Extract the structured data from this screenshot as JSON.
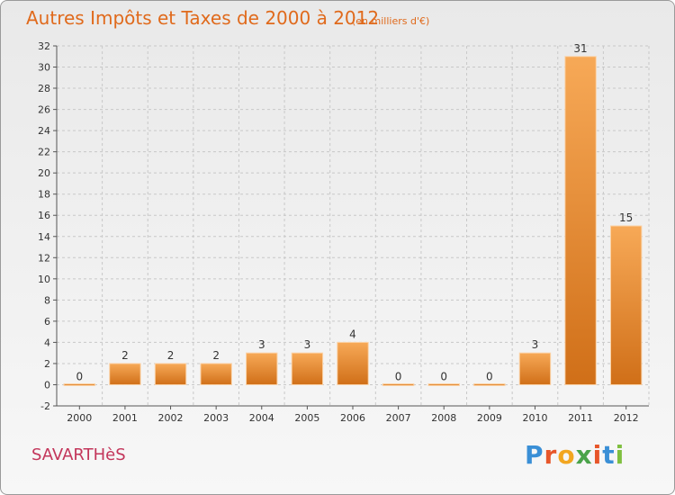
{
  "title": "Autres Impôts et Taxes de 2000 à 2012",
  "subtitle": "(en milliers d'€)",
  "commune": "SAVARTHèS",
  "logo": {
    "letters": [
      "P",
      "r",
      "o",
      "x",
      "i",
      "t",
      "i"
    ],
    "colors": [
      "#3a8fd6",
      "#e7562a",
      "#f2a620",
      "#4aa34a",
      "#e7562a",
      "#3a8fd6",
      "#7fbf3f"
    ]
  },
  "colors": {
    "bar": "#e8862c",
    "bar_light": "#f7a957",
    "bar_dark": "#d06f18",
    "grid": "#c8c8c8",
    "title": "#e06a1c"
  },
  "chart_data": {
    "type": "bar",
    "categories": [
      "2000",
      "2001",
      "2002",
      "2003",
      "2004",
      "2005",
      "2006",
      "2007",
      "2008",
      "2009",
      "2010",
      "2011",
      "2012"
    ],
    "values": [
      0,
      2,
      2,
      2,
      3,
      3,
      4,
      0,
      0,
      0,
      3,
      31,
      15
    ],
    "value_labels": [
      "0",
      "2",
      "2",
      "2",
      "3",
      "3",
      "4",
      "0",
      "0",
      "0",
      "3",
      "31",
      "15"
    ],
    "ylim": [
      -2,
      32
    ],
    "yticks": [
      -2,
      0,
      2,
      4,
      6,
      8,
      10,
      12,
      14,
      16,
      18,
      20,
      22,
      24,
      26,
      28,
      30,
      32
    ],
    "grid": true
  }
}
